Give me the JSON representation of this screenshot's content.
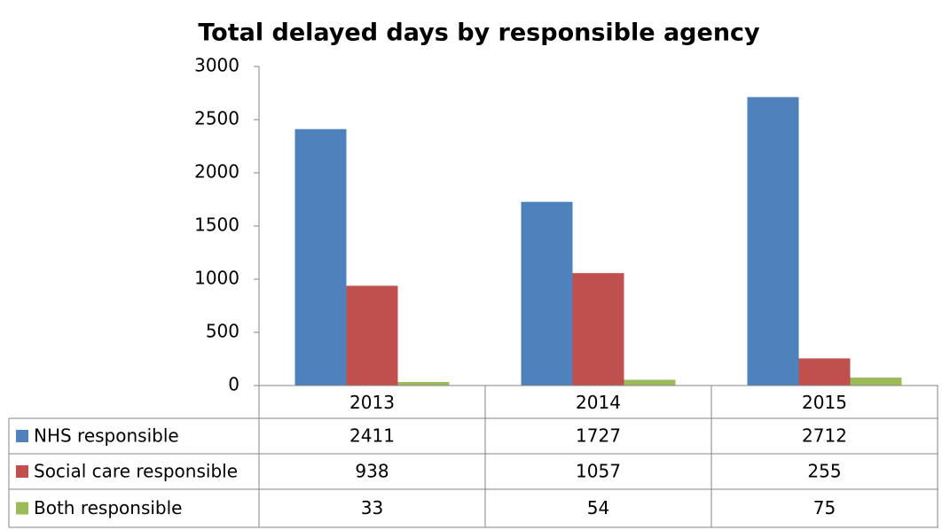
{
  "chart_data": {
    "type": "bar",
    "title": "Total delayed days by responsible agency",
    "categories": [
      "2013",
      "2014",
      "2015"
    ],
    "series": [
      {
        "name": "NHS responsible",
        "color": "#4f81bd",
        "values": [
          2411,
          1727,
          2712
        ]
      },
      {
        "name": "Social care responsible",
        "color": "#c0504d",
        "values": [
          938,
          1057,
          255
        ]
      },
      {
        "name": "Both responsible",
        "color": "#9bbb59",
        "values": [
          33,
          54,
          75
        ]
      }
    ],
    "ylim": [
      0,
      3000
    ],
    "yticks": [
      0,
      500,
      1000,
      1500,
      2000,
      2500,
      3000
    ],
    "grid": false,
    "legend": "table"
  }
}
